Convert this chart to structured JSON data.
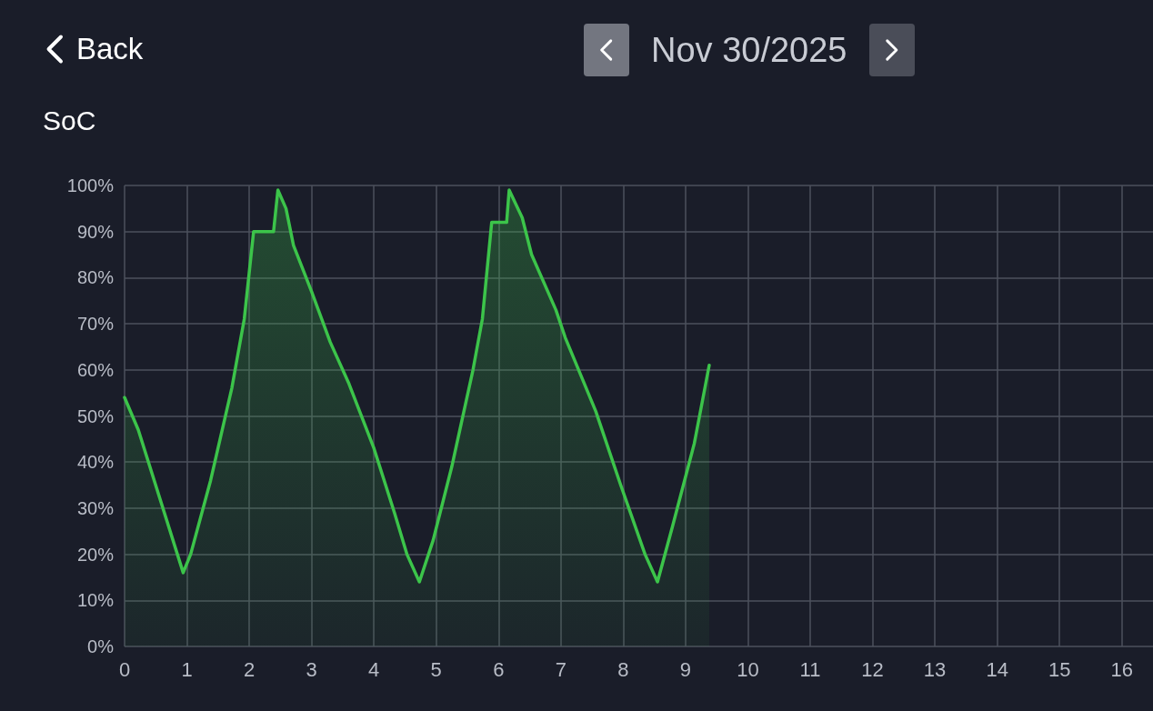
{
  "chart_data": {
    "type": "area",
    "title": "Nov 30/2025",
    "ylabel": "SoC",
    "annotations": [
      "Back"
    ],
    "x": [
      0,
      0.22,
      0.94,
      1.06,
      1.38,
      1.72,
      1.92,
      2.07,
      2.39,
      2.46,
      2.59,
      2.71,
      3.0,
      3.3,
      3.6,
      4.0,
      4.33,
      4.53,
      4.73,
      4.95,
      5.25,
      5.59,
      5.74,
      5.89,
      6.13,
      6.17,
      6.38,
      6.53,
      6.92,
      7.07,
      7.56,
      7.96,
      8.35,
      8.55,
      8.79,
      9.14,
      9.38
    ],
    "series": [
      {
        "color": "#3cc44a",
        "values": [
          54,
          47,
          16,
          20,
          36,
          56,
          71,
          90,
          90,
          99,
          95,
          87,
          77,
          66,
          57,
          43,
          29,
          20,
          14,
          23,
          39,
          60,
          71,
          92,
          92,
          99,
          93,
          85,
          73,
          67,
          51,
          35,
          20,
          14,
          26,
          44,
          61
        ]
      }
    ],
    "xlim": [
      0,
      16.5
    ],
    "xticks": [
      0,
      1,
      2,
      3,
      4,
      5,
      6,
      7,
      8,
      9,
      10,
      11,
      12,
      13,
      14,
      15,
      16
    ],
    "ylim": [
      0,
      100
    ],
    "yticks": [
      {
        "value": 0,
        "label": "0%"
      },
      {
        "value": 10,
        "label": "10%"
      },
      {
        "value": 20,
        "label": "20%"
      },
      {
        "value": 30,
        "label": "30%"
      },
      {
        "value": 40,
        "label": "40%"
      },
      {
        "value": 50,
        "label": "50%"
      },
      {
        "value": 60,
        "label": "60%"
      },
      {
        "value": 70,
        "label": "70%"
      },
      {
        "value": 80,
        "label": "80%"
      },
      {
        "value": 90,
        "label": "90%"
      },
      {
        "value": 100,
        "label": "100%"
      }
    ],
    "grid": true,
    "marker": "none",
    "line_style": "solid"
  }
}
